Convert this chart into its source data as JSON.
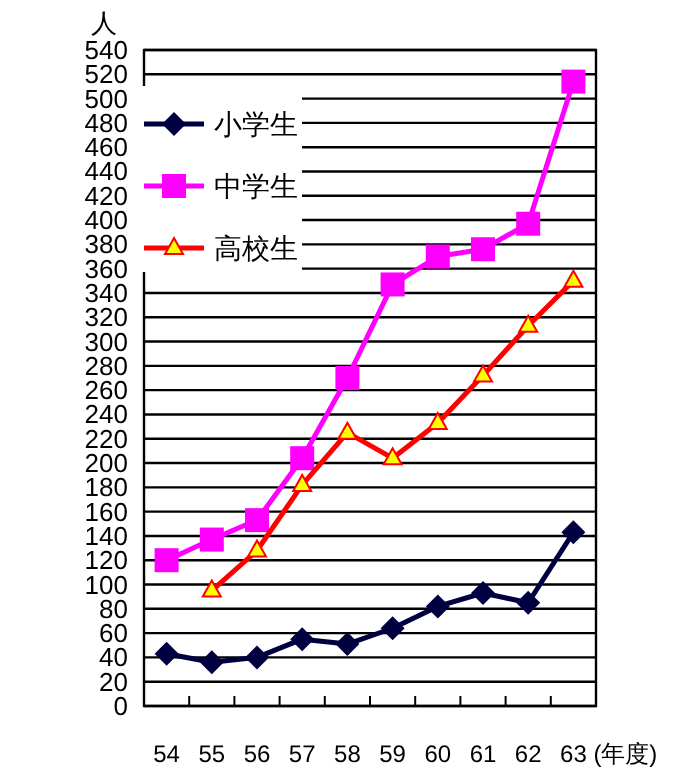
{
  "chart_data": {
    "type": "line",
    "ylabel": "人",
    "xlabel": "(年度)",
    "categories": [
      "54",
      "55",
      "56",
      "57",
      "58",
      "59",
      "60",
      "61",
      "62",
      "63"
    ],
    "series": [
      {
        "name": "小学生",
        "color": "#000040",
        "marker": "diamond",
        "values": [
          43,
          36,
          40,
          55,
          51,
          64,
          82,
          93,
          85,
          143
        ]
      },
      {
        "name": "中学生",
        "color": "#ff00ff",
        "marker": "square",
        "values": [
          120,
          137,
          153,
          204,
          270,
          347,
          370,
          376,
          397,
          514
        ]
      },
      {
        "name": "高校生",
        "color": "#ff0000",
        "marker": "triangle",
        "values": [
          null,
          95,
          128,
          182,
          225,
          204,
          233,
          272,
          313,
          350
        ]
      }
    ],
    "ylim": [
      0,
      540
    ],
    "yticks": [
      0,
      20,
      40,
      60,
      80,
      100,
      120,
      140,
      160,
      180,
      200,
      220,
      240,
      260,
      280,
      300,
      320,
      340,
      360,
      380,
      400,
      420,
      440,
      460,
      480,
      500,
      520,
      540
    ],
    "grid": "y",
    "legend": "top left",
    "line_style": "solid"
  }
}
